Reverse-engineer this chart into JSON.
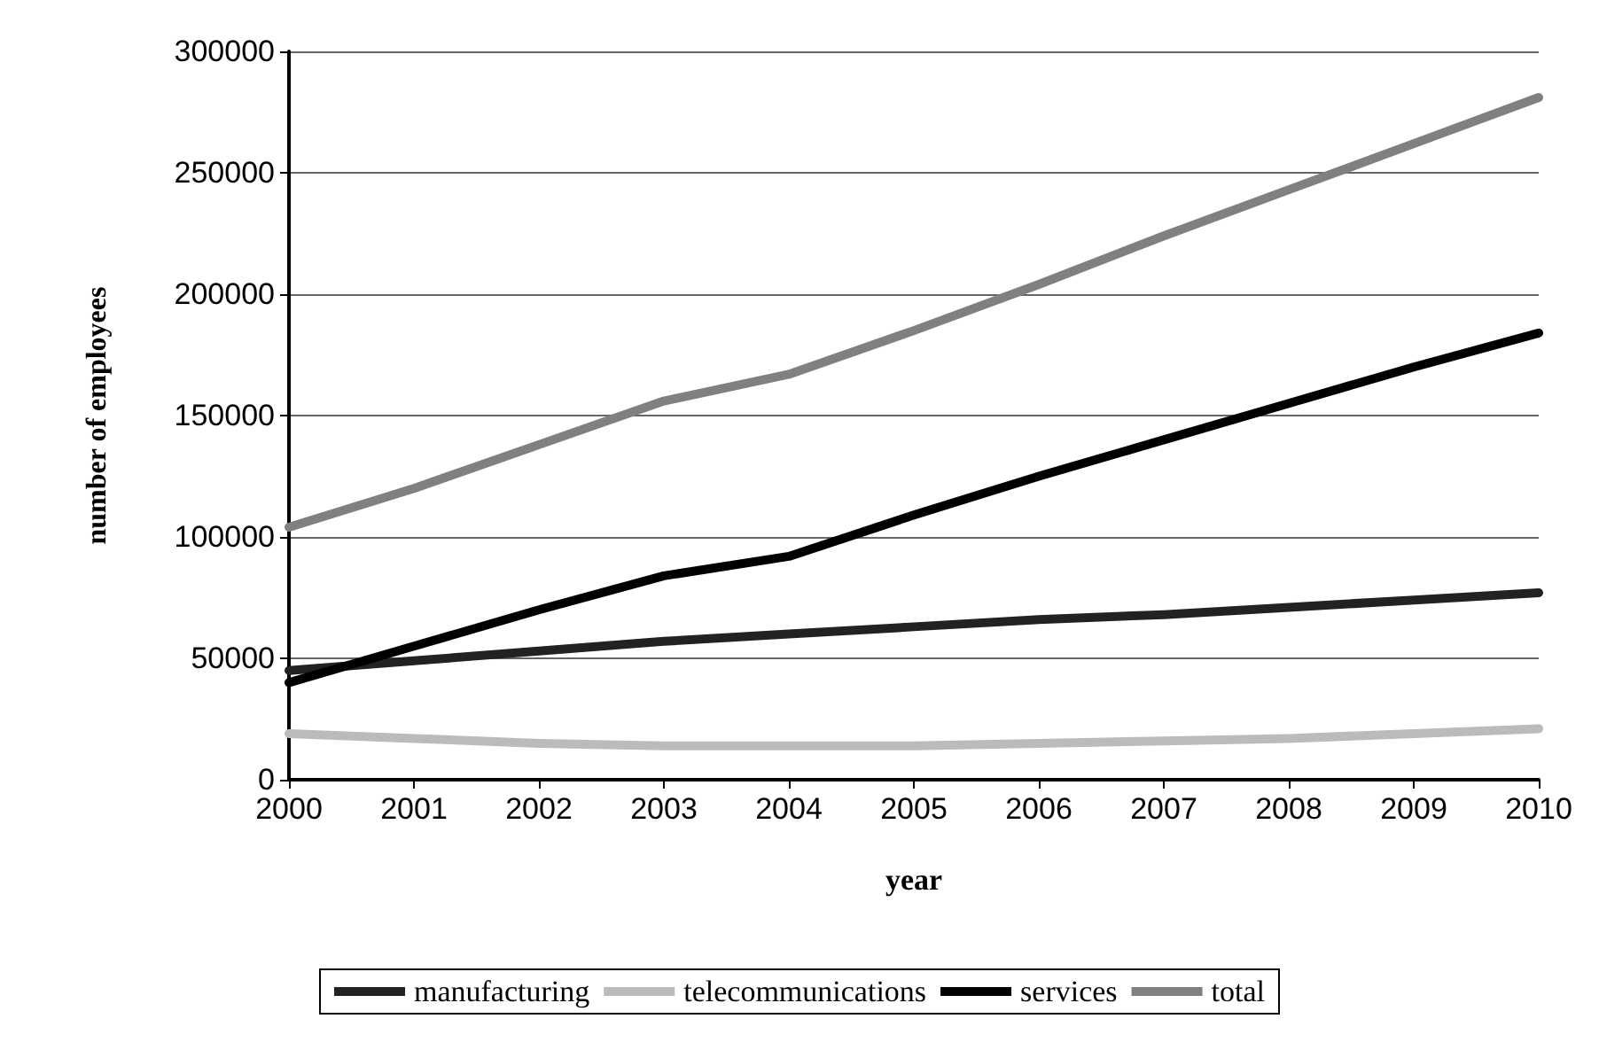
{
  "chart_data": {
    "type": "line",
    "xlabel": "year",
    "ylabel": "number of employees",
    "categories": [
      "2000",
      "2001",
      "2002",
      "2003",
      "2004",
      "2005",
      "2006",
      "2007",
      "2008",
      "2009",
      "2010"
    ],
    "series": [
      {
        "name": "manufacturing",
        "color": "#222222",
        "values": [
          45000,
          49000,
          53000,
          57000,
          60000,
          63000,
          66000,
          68000,
          71000,
          74000,
          77000
        ]
      },
      {
        "name": "telecommunications",
        "color": "#bbbbbb",
        "values": [
          19000,
          17000,
          15000,
          14000,
          14000,
          14000,
          15000,
          16000,
          17000,
          19000,
          21000
        ]
      },
      {
        "name": "services",
        "color": "#000000",
        "values": [
          40000,
          55000,
          70000,
          84000,
          92000,
          109000,
          125000,
          140000,
          155000,
          170000,
          184000
        ]
      },
      {
        "name": "total",
        "color": "#808080",
        "values": [
          104000,
          120000,
          138000,
          156000,
          167000,
          185000,
          204000,
          224000,
          243000,
          262000,
          281000
        ]
      }
    ],
    "ylim": [
      0,
      300000
    ],
    "yticks": [
      0,
      50000,
      100000,
      150000,
      200000,
      250000,
      300000
    ],
    "grid": "y",
    "legend": "bottom",
    "marker": "none",
    "line_style": "solid"
  }
}
